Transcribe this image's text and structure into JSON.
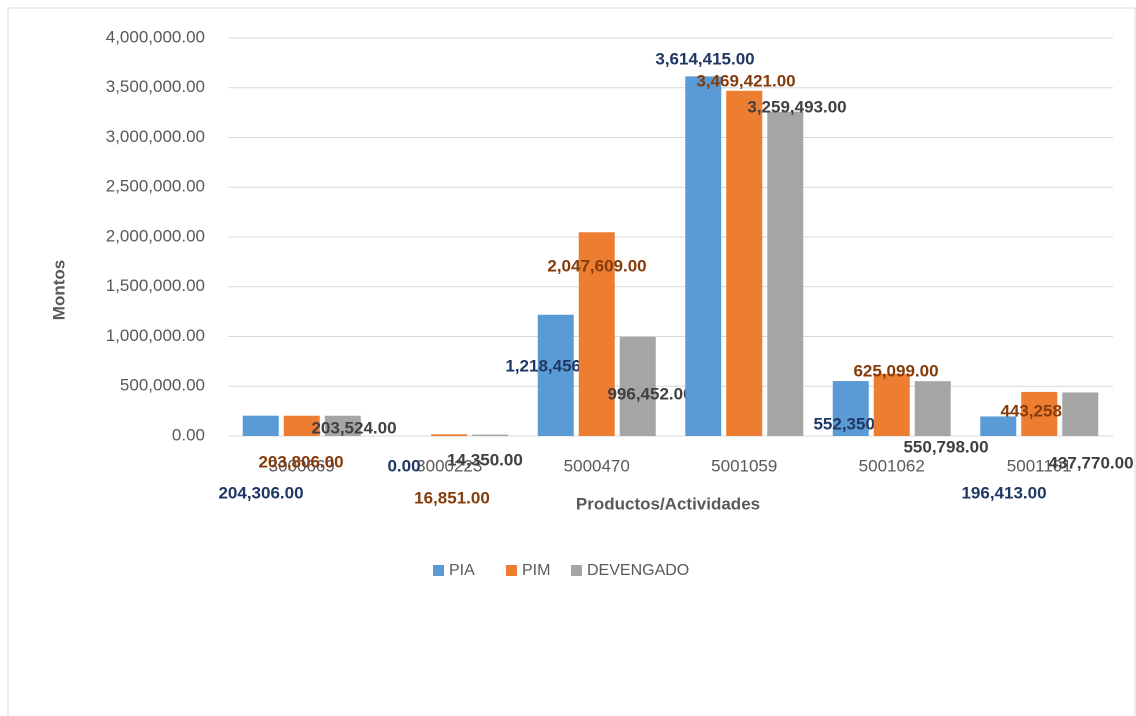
{
  "chart_data": {
    "type": "bar",
    "categories": [
      "3000669",
      "3000223",
      "5000470",
      "5001059",
      "5001062",
      "5001101"
    ],
    "series": [
      {
        "name": "PIA",
        "color": "#5b9bd5",
        "label_color": "#1f3864",
        "values": [
          204306,
          0,
          1218456,
          3614415,
          552350,
          196413
        ],
        "value_labels": [
          "204,306.00",
          "0.00",
          "1,218,456.00",
          "3,614,415.00",
          "552,350.00",
          "196,413.00"
        ]
      },
      {
        "name": "PIM",
        "color": "#ed7d31",
        "label_color": "#843c0c",
        "values": [
          203806,
          16851,
          2047609,
          3469421,
          625099,
          443258
        ],
        "value_labels": [
          "203,806.00",
          "16,851.00",
          "2,047,609.00",
          "3,469,421.00",
          "625,099.00",
          "443,258.00"
        ]
      },
      {
        "name": "DEVENGADO",
        "color": "#a5a5a5",
        "label_color": "#404040",
        "values": [
          203524,
          14350,
          996452,
          3259493,
          550798,
          437770
        ],
        "value_labels": [
          "203,524.00",
          "14,350.00",
          "996,452.00",
          "3,259,493.00",
          "550,798.00",
          "437,770.00"
        ]
      }
    ],
    "y_label": "Montos",
    "x_label": "Productos/Actividades",
    "ylim": [
      0,
      4000000
    ],
    "yticks": [
      {
        "value": 0,
        "label": "0.00"
      },
      {
        "value": 500000,
        "label": "500,000.00"
      },
      {
        "value": 1000000,
        "label": "1,000,000.00"
      },
      {
        "value": 1500000,
        "label": "1,500,000.00"
      },
      {
        "value": 2000000,
        "label": "2,000,000.00"
      },
      {
        "value": 2500000,
        "label": "2,500,000.00"
      },
      {
        "value": 3000000,
        "label": "3,000,000.00"
      },
      {
        "value": 3500000,
        "label": "3,500,000.00"
      },
      {
        "value": 4000000,
        "label": "4,000,000.00"
      }
    ],
    "grid": true,
    "legend": "bottom"
  }
}
